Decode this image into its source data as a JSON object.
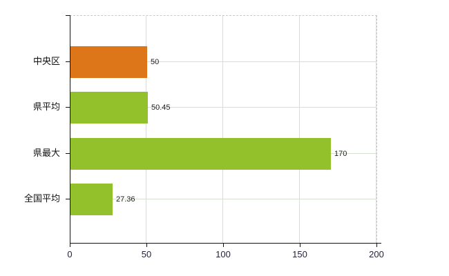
{
  "chart_data": {
    "type": "bar",
    "orientation": "horizontal",
    "title": "",
    "xlabel": "",
    "ylabel": "",
    "categories": [
      "中央区",
      "県平均",
      "県最大",
      "全国平均"
    ],
    "values": [
      50,
      50.45,
      170,
      27.36
    ],
    "value_labels": [
      "50",
      "50.45",
      "170",
      "27.36"
    ],
    "bar_colors": [
      "#dd7619",
      "#92c12c",
      "#92c12c",
      "#92c12c"
    ],
    "xlim": [
      0,
      200
    ],
    "x_ticks": [
      0,
      50,
      100,
      150,
      200
    ],
    "x_tick_labels": [
      "0",
      "50",
      "100",
      "150",
      "200"
    ],
    "grid": true,
    "legend": false
  },
  "colors": {
    "orange_bar": "#dd7619",
    "green_bar": "#92c12c",
    "axis": "#111111",
    "grid_horizontal": "#d6ded1",
    "grid_vertical": "#dbdbdb",
    "border_dashed": "#c9c9c9",
    "text": "#111111"
  }
}
